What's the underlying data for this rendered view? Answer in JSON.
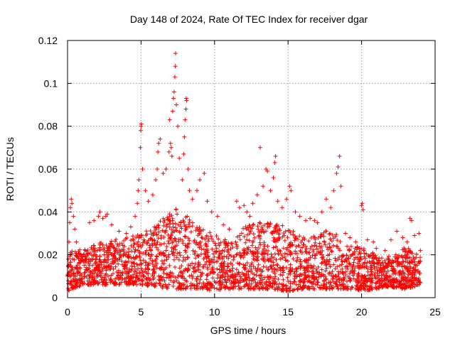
{
  "chart_data": {
    "type": "scatter",
    "title": "Day 148 of 2024, Rate Of TEC Index for receiver dgar",
    "xlabel": "GPS time / hours",
    "ylabel": "ROTI / TECUs",
    "xlim": [
      0,
      25
    ],
    "ylim": [
      0,
      0.12
    ],
    "xticks": [
      "0",
      "5",
      "10",
      "15",
      "20",
      "25"
    ],
    "yticks": [
      "0",
      "0.02",
      "0.04",
      "0.06",
      "0.08",
      "0.1",
      "0.12"
    ],
    "grid": true,
    "marker": "plus",
    "color": "#ff0000",
    "series": [
      {
        "points": [
          [
            0.05,
            0.018
          ],
          [
            0.1,
            0.026
          ],
          [
            0.15,
            0.035
          ],
          [
            0.2,
            0.042
          ],
          [
            0.25,
            0.046
          ],
          [
            0.3,
            0.044
          ],
          [
            0.4,
            0.038
          ],
          [
            0.5,
            0.032
          ],
          [
            0.6,
            0.026
          ],
          [
            1.2,
            0.022
          ],
          [
            1.5,
            0.035
          ],
          [
            1.8,
            0.036
          ],
          [
            2.1,
            0.038
          ],
          [
            2.2,
            0.04
          ],
          [
            2.4,
            0.037
          ],
          [
            2.6,
            0.038
          ],
          [
            2.7,
            0.039
          ],
          [
            3.0,
            0.034
          ],
          [
            3.5,
            0.031
          ],
          [
            4.0,
            0.03
          ],
          [
            4.3,
            0.033
          ],
          [
            4.6,
            0.038
          ],
          [
            4.75,
            0.044
          ],
          [
            4.8,
            0.05
          ],
          [
            4.85,
            0.055
          ],
          [
            4.95,
            0.07
          ],
          [
            4.98,
            0.078
          ],
          [
            5.0,
            0.08
          ],
          [
            5.02,
            0.081
          ],
          [
            5.1,
            0.06
          ],
          [
            5.3,
            0.05
          ],
          [
            5.5,
            0.045
          ],
          [
            5.8,
            0.048
          ],
          [
            6.0,
            0.055
          ],
          [
            6.1,
            0.06
          ],
          [
            6.15,
            0.068
          ],
          [
            6.2,
            0.072
          ],
          [
            6.3,
            0.074
          ],
          [
            6.5,
            0.058
          ],
          [
            6.7,
            0.06
          ],
          [
            6.9,
            0.068
          ],
          [
            6.95,
            0.083
          ],
          [
            7.0,
            0.072
          ],
          [
            7.05,
            0.07
          ],
          [
            7.1,
            0.066
          ],
          [
            7.15,
            0.087
          ],
          [
            7.2,
            0.093
          ],
          [
            7.25,
            0.096
          ],
          [
            7.3,
            0.103
          ],
          [
            7.33,
            0.108
          ],
          [
            7.35,
            0.114
          ],
          [
            7.4,
            0.09
          ],
          [
            7.5,
            0.08
          ],
          [
            7.6,
            0.065
          ],
          [
            7.8,
            0.055
          ],
          [
            7.9,
            0.067
          ],
          [
            7.95,
            0.075
          ],
          [
            8.0,
            0.083
          ],
          [
            8.05,
            0.088
          ],
          [
            8.07,
            0.093
          ],
          [
            8.1,
            0.092
          ],
          [
            8.2,
            0.06
          ],
          [
            8.3,
            0.05
          ],
          [
            8.5,
            0.046
          ],
          [
            8.8,
            0.05
          ],
          [
            9.0,
            0.055
          ],
          [
            9.3,
            0.058
          ],
          [
            9.5,
            0.045
          ],
          [
            9.8,
            0.04
          ],
          [
            10.2,
            0.038
          ],
          [
            10.6,
            0.034
          ],
          [
            11.0,
            0.032
          ],
          [
            11.5,
            0.045
          ],
          [
            11.7,
            0.042
          ],
          [
            12.0,
            0.043
          ],
          [
            12.2,
            0.04
          ],
          [
            12.4,
            0.038
          ],
          [
            12.6,
            0.044
          ],
          [
            12.9,
            0.048
          ],
          [
            13.1,
            0.07
          ],
          [
            13.3,
            0.052
          ],
          [
            13.5,
            0.06
          ],
          [
            13.6,
            0.059
          ],
          [
            13.8,
            0.05
          ],
          [
            14.0,
            0.056
          ],
          [
            14.1,
            0.063
          ],
          [
            14.15,
            0.066
          ],
          [
            14.3,
            0.045
          ],
          [
            14.6,
            0.042
          ],
          [
            14.9,
            0.046
          ],
          [
            15.1,
            0.052
          ],
          [
            15.2,
            0.05
          ],
          [
            15.5,
            0.04
          ],
          [
            15.8,
            0.038
          ],
          [
            16.2,
            0.036
          ],
          [
            16.5,
            0.037
          ],
          [
            16.8,
            0.036
          ],
          [
            17.0,
            0.035
          ],
          [
            17.3,
            0.04
          ],
          [
            17.6,
            0.046
          ],
          [
            17.9,
            0.042
          ],
          [
            18.1,
            0.05
          ],
          [
            18.3,
            0.058
          ],
          [
            18.4,
            0.061
          ],
          [
            18.5,
            0.066
          ],
          [
            18.6,
            0.052
          ],
          [
            18.9,
            0.03
          ],
          [
            19.2,
            0.028
          ],
          [
            19.6,
            0.026
          ],
          [
            20.0,
            0.043
          ],
          [
            20.05,
            0.044
          ],
          [
            20.1,
            0.041
          ],
          [
            20.4,
            0.027
          ],
          [
            20.8,
            0.026
          ],
          [
            21.0,
            0.023
          ],
          [
            21.3,
            0.015
          ],
          [
            21.6,
            0.022
          ],
          [
            22.0,
            0.027
          ],
          [
            22.4,
            0.031
          ],
          [
            22.8,
            0.028
          ],
          [
            23.1,
            0.026
          ],
          [
            23.3,
            0.037
          ],
          [
            23.4,
            0.036
          ],
          [
            23.6,
            0.029
          ],
          [
            23.9,
            0.03
          ],
          [
            24.0,
            0.022
          ]
        ],
        "dense_band": {
          "x_start": 0.0,
          "x_end": 24.0,
          "envelope_x": [
            0,
            1,
            2,
            3,
            4,
            5,
            6,
            7,
            7.5,
            8,
            9,
            10,
            11,
            12,
            13,
            14,
            15,
            16,
            17,
            18,
            19,
            20,
            21,
            21.5,
            22,
            23,
            24
          ],
          "envelope_low": [
            0.003,
            0.006,
            0.006,
            0.006,
            0.006,
            0.006,
            0.005,
            0.004,
            0.004,
            0.004,
            0.004,
            0.003,
            0.004,
            0.004,
            0.004,
            0.004,
            0.003,
            0.004,
            0.004,
            0.004,
            0.004,
            0.003,
            0.004,
            0.005,
            0.005,
            0.004,
            0.006
          ],
          "envelope_high": [
            0.024,
            0.022,
            0.026,
            0.027,
            0.028,
            0.03,
            0.034,
            0.04,
            0.045,
            0.04,
            0.034,
            0.03,
            0.026,
            0.033,
            0.035,
            0.036,
            0.033,
            0.028,
            0.03,
            0.032,
            0.024,
            0.024,
            0.02,
            0.018,
            0.02,
            0.024,
            0.02
          ]
        }
      }
    ]
  }
}
